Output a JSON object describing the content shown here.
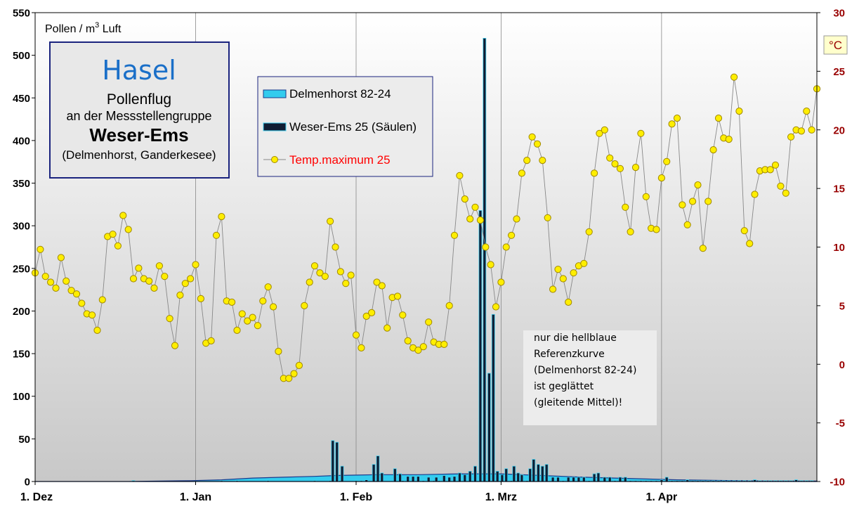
{
  "chart_data": {
    "type": "bar",
    "title": "Hasel",
    "subtitle": "Pollenflug",
    "subtitle2": "an der Messstellengruppe",
    "region": "Weser-Ems",
    "stations": "(Delmenhorst,  Ganderkesee)",
    "ylabel_prefix": "Pollen / m",
    "ylabel_sup": "3",
    "ylabel_suffix": " Luft",
    "y2label": "°C",
    "ylim": [
      0,
      550
    ],
    "y2lim": [
      -10,
      30
    ],
    "yticks": [
      "0",
      "50",
      "100",
      "150",
      "200",
      "250",
      "300",
      "350",
      "400",
      "450",
      "500",
      "550"
    ],
    "y2ticks": [
      "-10",
      "-5",
      "0",
      "5",
      "10",
      "15",
      "20",
      "25",
      "30"
    ],
    "xticks": [
      {
        "label": "1. Dez",
        "day": 0
      },
      {
        "label": "1. Jan",
        "day": 31
      },
      {
        "label": "1. Feb",
        "day": 62
      },
      {
        "label": "1. Mrz",
        "day": 90
      },
      {
        "label": "1. Apr",
        "day": 121
      }
    ],
    "xlim": [
      0,
      151
    ],
    "legend": {
      "placement": "top-center",
      "entries": [
        "Delmenhorst 82-24",
        "Weser-Ems 25 (Säulen)",
        "Temp.maximum 25"
      ]
    },
    "note": {
      "lines": [
        "nur die hellblaue",
        "Referenzkurve",
        "(Delmenhorst  82-24)",
        "ist geglättet",
        "(gleitende  Mittel)!"
      ]
    },
    "colors": {
      "background_top": "#ffffff",
      "background_bottom": "#c8c8c8",
      "reference_fill": "#33ccee",
      "reference_edge": "#1a3a8c",
      "bar_fill": "#101d33",
      "bar_edge": "#3fd0f0",
      "temp_marker": "#ffee00",
      "temp_marker_edge": "#a08800",
      "temp_line": "#888888",
      "title_blue": "#1a6fc8",
      "box_border": "#1a237e",
      "y2_text": "#990000",
      "legend_temp_text": "#ff0000"
    },
    "series": [
      {
        "name": "Delmenhorst 82-24",
        "points": [
          [
            0,
            0
          ],
          [
            18,
            0
          ],
          [
            24,
            0.5
          ],
          [
            30,
            1
          ],
          [
            36,
            2
          ],
          [
            42,
            4
          ],
          [
            48,
            5
          ],
          [
            54,
            6
          ],
          [
            58,
            7
          ],
          [
            62,
            7.5
          ],
          [
            66,
            8
          ],
          [
            70,
            8
          ],
          [
            74,
            8
          ],
          [
            78,
            8.5
          ],
          [
            82,
            9
          ],
          [
            86,
            9
          ],
          [
            90,
            9
          ],
          [
            94,
            8
          ],
          [
            98,
            7
          ],
          [
            102,
            6
          ],
          [
            106,
            5
          ],
          [
            112,
            4
          ],
          [
            118,
            3
          ],
          [
            124,
            2
          ],
          [
            130,
            1.5
          ],
          [
            136,
            1
          ],
          [
            142,
            0.5
          ],
          [
            151,
            0.5
          ]
        ]
      },
      {
        "name": "Weser-Ems 25 (Säulen)",
        "bars": [
          [
            19,
            1
          ],
          [
            36,
            1
          ],
          [
            39,
            1
          ],
          [
            45,
            1
          ],
          [
            54,
            1
          ],
          [
            57,
            1
          ],
          [
            59,
            1
          ],
          [
            62,
            1
          ],
          [
            63,
            1
          ],
          [
            64,
            2
          ],
          [
            66,
            1
          ],
          [
            71,
            1
          ],
          [
            72,
            1
          ],
          [
            73,
            1
          ],
          [
            74,
            1
          ],
          [
            75,
            1
          ],
          [
            76,
            1
          ],
          [
            77,
            1
          ],
          [
            78,
            1
          ],
          [
            79,
            2
          ],
          [
            80,
            2
          ],
          [
            81,
            2
          ],
          [
            82,
            2
          ],
          [
            83,
            1
          ],
          [
            84,
            1
          ],
          [
            85,
            1
          ],
          [
            86,
            1
          ],
          [
            87,
            1
          ],
          [
            88,
            1
          ],
          [
            89,
            1
          ],
          [
            90,
            1
          ],
          [
            91,
            1
          ],
          [
            92,
            1
          ],
          [
            93,
            1
          ],
          [
            94,
            1
          ],
          [
            95,
            1
          ],
          [
            96,
            1
          ],
          [
            97,
            1
          ],
          [
            98,
            1
          ],
          [
            99,
            1
          ],
          [
            100,
            1
          ],
          [
            101,
            1
          ],
          [
            102,
            1
          ],
          [
            103,
            1
          ],
          [
            104,
            1
          ],
          [
            105,
            1
          ],
          [
            106,
            1
          ],
          [
            107,
            1
          ],
          [
            108,
            1
          ],
          [
            109,
            1
          ],
          [
            110,
            1
          ],
          [
            111,
            1
          ],
          [
            112,
            1
          ],
          [
            113,
            1
          ],
          [
            114,
            1
          ],
          [
            115,
            1
          ],
          [
            116,
            1
          ],
          [
            117,
            1
          ],
          [
            118,
            1
          ],
          [
            119,
            1
          ],
          [
            120,
            1
          ],
          [
            121,
            1
          ],
          [
            122,
            1
          ],
          [
            123,
            1
          ],
          [
            124,
            1
          ],
          [
            125,
            1
          ],
          [
            126,
            1
          ],
          [
            127,
            1
          ],
          [
            128,
            1
          ],
          [
            129,
            1
          ],
          [
            130,
            1
          ],
          [
            131,
            1
          ],
          [
            132,
            1
          ],
          [
            133,
            1
          ],
          [
            134,
            1
          ],
          [
            135,
            1
          ],
          [
            136,
            1
          ],
          [
            137,
            1
          ],
          [
            138,
            1
          ],
          [
            139,
            1
          ],
          [
            140,
            1
          ],
          [
            141,
            1
          ],
          [
            142,
            1
          ],
          [
            143,
            1
          ],
          [
            144,
            1
          ],
          [
            145,
            1
          ],
          [
            146,
            1
          ],
          [
            147,
            1
          ],
          [
            148,
            1
          ],
          [
            149,
            1
          ],
          [
            150,
            1
          ]
        ]
      },
      {
        "name": "Weser-Ems 25 (Säulen) peaks",
        "bars": [
          [
            57.5,
            48
          ],
          [
            58.3,
            46
          ],
          [
            59.3,
            18
          ],
          [
            65.4,
            20
          ],
          [
            66.2,
            30
          ],
          [
            67,
            10
          ],
          [
            69.5,
            15
          ],
          [
            70.5,
            9
          ],
          [
            72,
            6
          ],
          [
            73,
            6
          ],
          [
            74,
            6
          ],
          [
            76,
            5
          ],
          [
            77.5,
            5
          ],
          [
            79,
            7
          ],
          [
            80,
            5
          ],
          [
            81,
            6
          ],
          [
            82,
            10
          ],
          [
            83,
            8
          ],
          [
            84,
            12
          ],
          [
            85,
            18
          ],
          [
            86,
            318
          ],
          [
            86.8,
            520
          ],
          [
            87.7,
            127
          ],
          [
            88.5,
            196
          ],
          [
            89.3,
            12
          ],
          [
            90.2,
            8
          ],
          [
            91,
            15
          ],
          [
            92.5,
            18
          ],
          [
            93.3,
            10
          ],
          [
            94,
            8
          ],
          [
            95.6,
            15
          ],
          [
            96.3,
            26
          ],
          [
            97.2,
            20
          ],
          [
            98,
            18
          ],
          [
            98.8,
            20
          ],
          [
            100,
            5
          ],
          [
            101,
            5
          ],
          [
            103,
            5
          ],
          [
            104,
            5
          ],
          [
            105,
            5
          ],
          [
            106,
            5
          ],
          [
            108,
            9
          ],
          [
            108.8,
            10
          ],
          [
            110,
            5
          ],
          [
            111,
            5
          ],
          [
            113,
            5
          ],
          [
            114,
            5
          ],
          [
            121,
            2
          ],
          [
            122,
            5
          ],
          [
            126,
            2
          ],
          [
            139,
            2
          ],
          [
            147,
            2
          ]
        ]
      },
      {
        "name": "Temp.maximum 25",
        "values": [
          7.8,
          9.8,
          7.5,
          7,
          6.5,
          9.1,
          7.1,
          6.3,
          6,
          5.2,
          4.3,
          4.2,
          2.9,
          5.5,
          10.9,
          11.1,
          10.1,
          12.7,
          11.5,
          7.3,
          8.2,
          7.3,
          7.1,
          6.5,
          8.4,
          7.5,
          3.9,
          1.6,
          5.9,
          6.9,
          7.3,
          8.5,
          5.6,
          1.8,
          2,
          11,
          12.6,
          5.4,
          5.3,
          2.9,
          4.3,
          3.7,
          4,
          3.3,
          5.4,
          6.6,
          4.9,
          1.1,
          -1.2,
          -1.2,
          -0.8,
          -0.1,
          5,
          7,
          8.4,
          7.8,
          7.5,
          12.2,
          10,
          7.9,
          6.9,
          7.6,
          2.5,
          1.4,
          4.1,
          4.4,
          7,
          6.7,
          3.1,
          5.7,
          5.8,
          4.2,
          2,
          1.4,
          1.2,
          1.5,
          3.6,
          1.9,
          1.7,
          1.7,
          5,
          11,
          16.1,
          14.1,
          12.4,
          13.4,
          12.3,
          10,
          8.5,
          4.9,
          7,
          10,
          11,
          12.4,
          16.3,
          17.4,
          19.4,
          18.8,
          17.4,
          12.5,
          6.4,
          8.1,
          7.3,
          5.3,
          7.8,
          8.4,
          8.6,
          11.3,
          16.3,
          19.7,
          20,
          17.6,
          17.1,
          16.7,
          13.4,
          11.3,
          16.8,
          19.7,
          14.3,
          11.6,
          11.5,
          15.9,
          17.3,
          20.5,
          21,
          13.6,
          11.9,
          13.9,
          15.3,
          9.9,
          13.9,
          18.3,
          21,
          19.3,
          19.2,
          24.5,
          21.6,
          11.4,
          10.3,
          14.5,
          16.5,
          16.6,
          16.6,
          17,
          15.2,
          14.6,
          19.4,
          20,
          19.9,
          21.6,
          20,
          23.5
        ]
      }
    ]
  }
}
